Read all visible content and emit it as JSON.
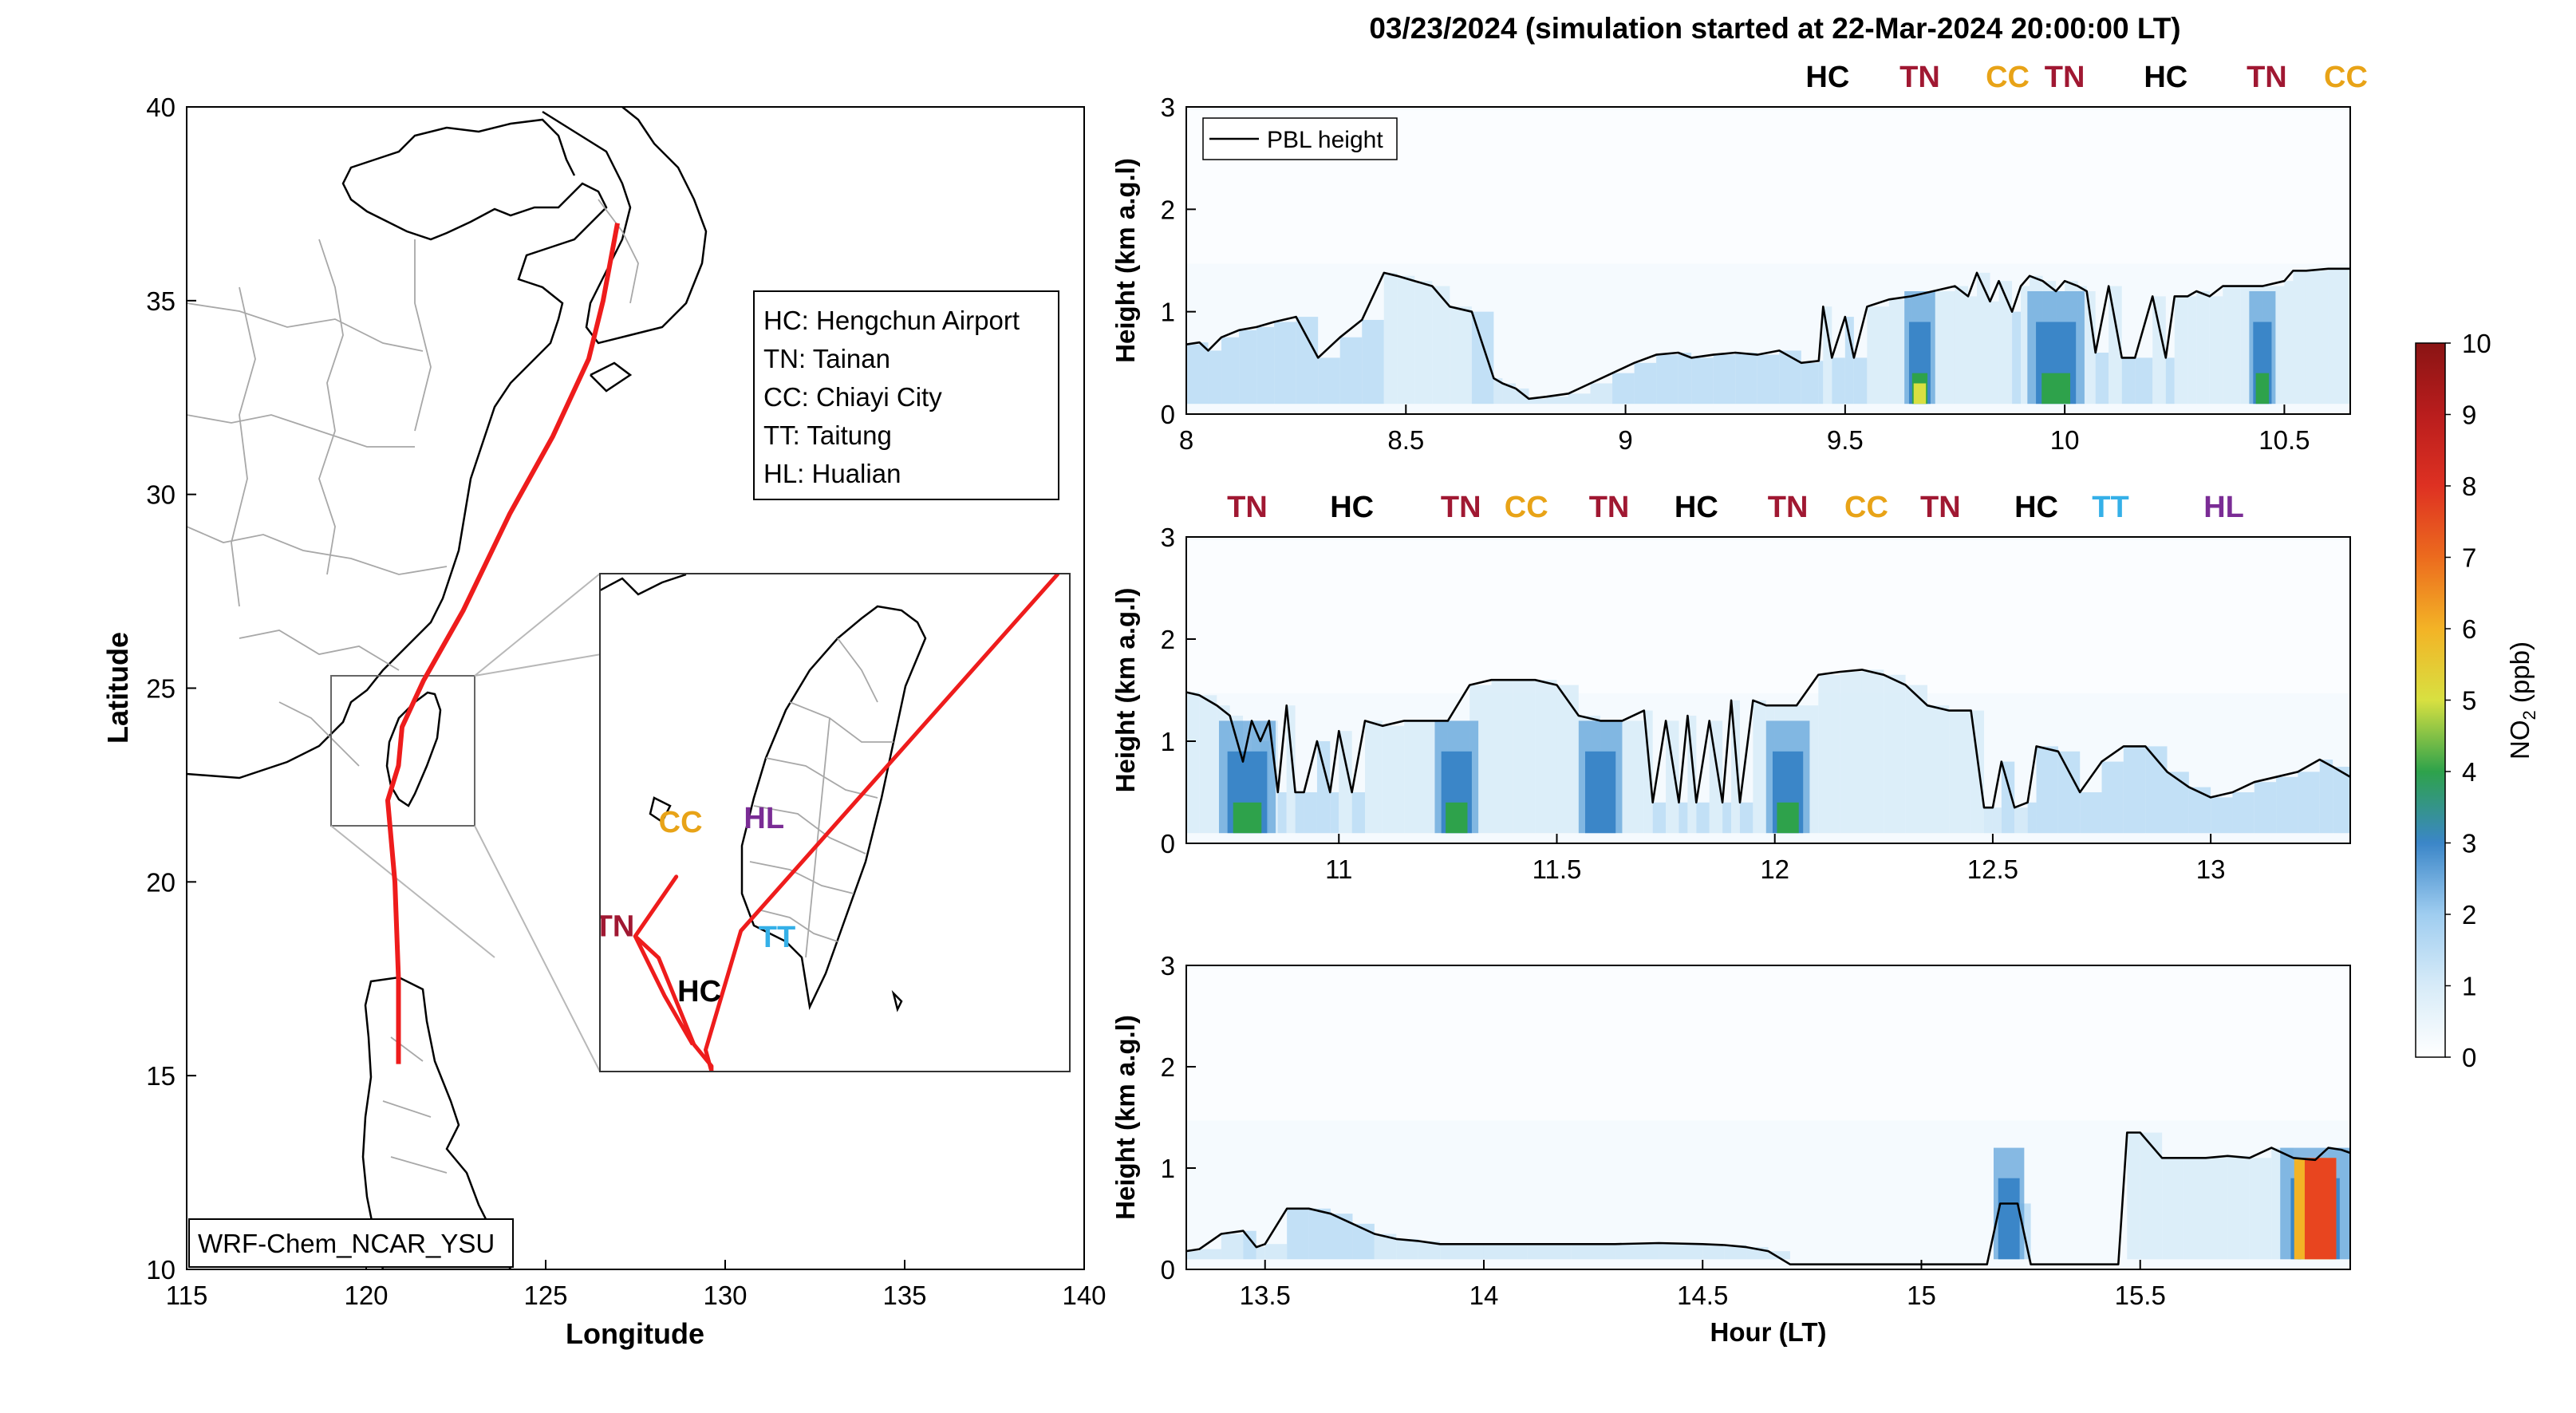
{
  "figure_title": "03/23/2024 (simulation started at 22-Mar-2024 20:00:00 LT)",
  "colors": {
    "route": "#ee1c1c",
    "HC": "#000000",
    "TN": "#a01832",
    "CC": "#e8a317",
    "TT": "#35b0e8",
    "HL": "#7a2c95",
    "land_fill": "#ffffff",
    "coast": "#000000",
    "border": "#a8a8a8",
    "pbl": "#000000"
  },
  "map": {
    "xlabel": "Longitude",
    "ylabel": "Latitude",
    "xlim": [
      115,
      140
    ],
    "ylim": [
      10,
      40
    ],
    "xticks": [
      "115",
      "120",
      "125",
      "130",
      "135",
      "140"
    ],
    "yticks": [
      "10",
      "15",
      "20",
      "25",
      "30",
      "35",
      "40"
    ],
    "legend_lines": [
      "HC: Hengchun Airport",
      "TN: Tainan",
      "CC: Chiayi City",
      "TT: Taitung",
      "HL: Hualian"
    ],
    "model_label": "WRF-Chem_NCAR_YSU",
    "route_lonlat": [
      [
        127.0,
        37.0
      ],
      [
        126.9,
        36.5
      ],
      [
        126.6,
        35.0
      ],
      [
        126.2,
        33.5
      ],
      [
        125.2,
        31.5
      ],
      [
        124.0,
        29.5
      ],
      [
        122.7,
        27.0
      ],
      [
        121.6,
        25.2
      ],
      [
        121.0,
        24.0
      ],
      [
        120.9,
        23.0
      ],
      [
        120.6,
        22.1
      ],
      [
        120.8,
        20.0
      ],
      [
        120.9,
        17.5
      ],
      [
        120.9,
        15.3
      ]
    ],
    "inset_box": {
      "lon": [
        119.2,
        123.2
      ],
      "lat": [
        21.4,
        26.0
      ]
    },
    "inset": {
      "lon_range": [
        119.0,
        127.0
      ],
      "lat_range": [
        21.3,
        25.9
      ],
      "labels": [
        {
          "code": "CC",
          "text": "CC",
          "lon": 120.0,
          "lat": 23.51
        },
        {
          "code": "HL",
          "text": "HL",
          "lon": 121.45,
          "lat": 23.55
        },
        {
          "code": "TN",
          "text": "TN",
          "lon": 118.9,
          "lat": 22.55
        },
        {
          "code": "TT",
          "text": "TT",
          "lon": 121.7,
          "lat": 22.45
        },
        {
          "code": "HC",
          "text": "HC",
          "lon": 120.32,
          "lat": 21.95
        }
      ]
    }
  },
  "colorbar": {
    "label": "NO2 (ppb)",
    "label_main": "NO",
    "label_sub": "2",
    "label_unit": " (ppb)",
    "ticks": [
      "0",
      "1",
      "2",
      "3",
      "4",
      "5",
      "6",
      "7",
      "8",
      "9",
      "10"
    ],
    "range": [
      0,
      10
    ]
  },
  "panel_axis_labels": {
    "ylabel": "Height (km a.g.l)",
    "xlabel": "Hour (LT)"
  },
  "legend": {
    "pbl": "PBL height"
  },
  "chart_data": [
    {
      "type": "heatmap",
      "title": "03/23/2024 (simulation started at 22-Mar-2024 20:00:00 LT)",
      "xlim": [
        8.0,
        10.65
      ],
      "ylim": [
        0,
        3
      ],
      "xticks": [
        "8",
        "8.5",
        "9",
        "9.5",
        "10",
        "10.5"
      ],
      "yticks": [
        "0",
        "1",
        "2",
        "3"
      ],
      "ylabel": "Height (km a.g.l)",
      "top_labels": [
        {
          "code": "HC",
          "text": "HC",
          "x": 9.46
        },
        {
          "code": "TN",
          "text": "TN",
          "x": 9.67
        },
        {
          "code": "CC",
          "text": "CC",
          "x": 9.87
        },
        {
          "code": "TN",
          "text": "TN",
          "x": 10.0
        },
        {
          "code": "HC",
          "text": "HC",
          "x": 10.23
        },
        {
          "code": "TN",
          "text": "TN",
          "x": 10.46
        },
        {
          "code": "CC",
          "text": "CC",
          "x": 10.64
        }
      ],
      "series": [
        {
          "name": "PBL height",
          "x": [
            8.0,
            8.03,
            8.05,
            8.08,
            8.12,
            8.16,
            8.2,
            8.25,
            8.3,
            8.35,
            8.4,
            8.45,
            8.48,
            8.52,
            8.56,
            8.6,
            8.65,
            8.7,
            8.72,
            8.75,
            8.78,
            8.82,
            8.87,
            8.92,
            8.97,
            9.02,
            9.07,
            9.12,
            9.15,
            9.2,
            9.25,
            9.3,
            9.35,
            9.4,
            9.44,
            9.45,
            9.47,
            9.5,
            9.52,
            9.55,
            9.6,
            9.65,
            9.7,
            9.75,
            9.78,
            9.8,
            9.83,
            9.85,
            9.88,
            9.9,
            9.92,
            9.95,
            9.98,
            10.0,
            10.03,
            10.05,
            10.07,
            10.1,
            10.13,
            10.16,
            10.2,
            10.23,
            10.25,
            10.28,
            10.3,
            10.33,
            10.36,
            10.4,
            10.45,
            10.5,
            10.52,
            10.55,
            10.6,
            10.65
          ],
          "y": [
            0.68,
            0.7,
            0.62,
            0.75,
            0.82,
            0.85,
            0.9,
            0.95,
            0.55,
            0.75,
            0.92,
            1.38,
            1.35,
            1.3,
            1.25,
            1.05,
            1.0,
            0.35,
            0.3,
            0.25,
            0.15,
            0.17,
            0.2,
            0.3,
            0.4,
            0.5,
            0.58,
            0.6,
            0.55,
            0.58,
            0.6,
            0.58,
            0.62,
            0.5,
            0.52,
            1.05,
            0.55,
            0.95,
            0.55,
            1.05,
            1.12,
            1.15,
            1.2,
            1.25,
            1.15,
            1.38,
            1.1,
            1.3,
            1.0,
            1.25,
            1.35,
            1.3,
            1.2,
            1.3,
            1.25,
            1.2,
            0.6,
            1.25,
            0.55,
            0.55,
            1.15,
            0.55,
            1.15,
            1.15,
            1.2,
            1.15,
            1.25,
            1.25,
            1.25,
            1.3,
            1.4,
            1.4,
            1.42,
            1.42
          ]
        }
      ],
      "no2_hotspots": [
        {
          "x_center": 9.67,
          "width": 0.07,
          "max_ppb": 5.0
        },
        {
          "x_center": 9.98,
          "width": 0.13,
          "max_ppb": 4.3
        },
        {
          "x_center": 10.45,
          "width": 0.06,
          "max_ppb": 3.5
        }
      ]
    },
    {
      "type": "heatmap",
      "xlim": [
        10.65,
        13.32
      ],
      "ylim": [
        0,
        3
      ],
      "xticks": [
        "11",
        "11.5",
        "12",
        "12.5",
        "13"
      ],
      "yticks": [
        "0",
        "1",
        "2",
        "3"
      ],
      "ylabel": "Height (km a.g.l)",
      "top_labels": [
        {
          "code": "TN",
          "text": "TN",
          "x": 10.79
        },
        {
          "code": "HC",
          "text": "HC",
          "x": 11.03
        },
        {
          "code": "TN",
          "text": "TN",
          "x": 11.28
        },
        {
          "code": "CC",
          "text": "CC",
          "x": 11.43
        },
        {
          "code": "TN",
          "text": "TN",
          "x": 11.62
        },
        {
          "code": "HC",
          "text": "HC",
          "x": 11.82
        },
        {
          "code": "TN",
          "text": "TN",
          "x": 12.03
        },
        {
          "code": "CC",
          "text": "CC",
          "x": 12.21
        },
        {
          "code": "TN",
          "text": "TN",
          "x": 12.38
        },
        {
          "code": "HC",
          "text": "HC",
          "x": 12.6
        },
        {
          "code": "TT",
          "text": "TT",
          "x": 12.77
        },
        {
          "code": "HL",
          "text": "HL",
          "x": 13.03
        }
      ],
      "series": [
        {
          "name": "PBL height",
          "x": [
            10.65,
            10.68,
            10.72,
            10.75,
            10.78,
            10.8,
            10.82,
            10.84,
            10.86,
            10.88,
            10.9,
            10.92,
            10.95,
            10.98,
            11.0,
            11.03,
            11.06,
            11.1,
            11.15,
            11.2,
            11.25,
            11.3,
            11.35,
            11.4,
            11.45,
            11.5,
            11.55,
            11.6,
            11.65,
            11.7,
            11.72,
            11.75,
            11.78,
            11.8,
            11.82,
            11.85,
            11.88,
            11.9,
            11.92,
            11.95,
            11.98,
            12.0,
            12.05,
            12.1,
            12.15,
            12.2,
            12.25,
            12.3,
            12.35,
            12.4,
            12.45,
            12.48,
            12.5,
            12.52,
            12.55,
            12.58,
            12.6,
            12.65,
            12.7,
            12.75,
            12.8,
            12.85,
            12.9,
            12.95,
            13.0,
            13.05,
            13.1,
            13.15,
            13.2,
            13.25,
            13.28,
            13.32
          ],
          "y": [
            1.48,
            1.45,
            1.35,
            1.25,
            0.8,
            1.2,
            1.0,
            1.2,
            0.5,
            1.35,
            0.5,
            0.5,
            1.0,
            0.5,
            1.1,
            0.5,
            1.2,
            1.15,
            1.2,
            1.2,
            1.2,
            1.55,
            1.6,
            1.6,
            1.6,
            1.55,
            1.25,
            1.2,
            1.2,
            1.3,
            0.4,
            1.2,
            0.4,
            1.25,
            0.4,
            1.2,
            0.4,
            1.4,
            0.4,
            1.4,
            1.35,
            1.35,
            1.35,
            1.65,
            1.68,
            1.7,
            1.65,
            1.55,
            1.35,
            1.3,
            1.3,
            0.35,
            0.35,
            0.8,
            0.35,
            0.4,
            0.95,
            0.9,
            0.5,
            0.8,
            0.95,
            0.95,
            0.7,
            0.55,
            0.45,
            0.5,
            0.6,
            0.65,
            0.7,
            0.82,
            0.75,
            0.65
          ]
        }
      ],
      "no2_hotspots": [
        {
          "x_center": 10.79,
          "width": 0.13,
          "max_ppb": 3.6
        },
        {
          "x_center": 11.27,
          "width": 0.1,
          "max_ppb": 3.3
        },
        {
          "x_center": 11.6,
          "width": 0.1,
          "max_ppb": 3.2
        },
        {
          "x_center": 12.03,
          "width": 0.1,
          "max_ppb": 3.4
        }
      ]
    },
    {
      "type": "heatmap",
      "xlim": [
        13.32,
        15.98
      ],
      "ylim": [
        0,
        3
      ],
      "xticks": [
        "13.5",
        "14",
        "14.5",
        "15",
        "15.5"
      ],
      "yticks": [
        "0",
        "1",
        "2",
        "3"
      ],
      "xlabel": "Hour (LT)",
      "ylabel": "Height (km a.g.l)",
      "top_labels": [],
      "series": [
        {
          "name": "PBL height",
          "x": [
            13.32,
            13.35,
            13.4,
            13.45,
            13.48,
            13.5,
            13.55,
            13.6,
            13.65,
            13.7,
            13.75,
            13.8,
            13.85,
            13.9,
            14.0,
            14.1,
            14.2,
            14.3,
            14.4,
            14.5,
            14.55,
            14.6,
            14.65,
            14.7,
            14.8,
            14.9,
            15.0,
            15.1,
            15.15,
            15.18,
            15.22,
            15.25,
            15.3,
            15.4,
            15.45,
            15.47,
            15.5,
            15.55,
            15.6,
            15.65,
            15.7,
            15.75,
            15.8,
            15.85,
            15.9,
            15.93,
            15.96,
            15.98
          ],
          "y": [
            0.18,
            0.2,
            0.35,
            0.38,
            0.22,
            0.25,
            0.6,
            0.6,
            0.55,
            0.45,
            0.35,
            0.3,
            0.28,
            0.25,
            0.25,
            0.25,
            0.25,
            0.25,
            0.26,
            0.25,
            0.24,
            0.22,
            0.18,
            0.05,
            0.05,
            0.05,
            0.05,
            0.05,
            0.05,
            0.65,
            0.65,
            0.05,
            0.05,
            0.05,
            0.05,
            1.35,
            1.35,
            1.1,
            1.1,
            1.1,
            1.12,
            1.1,
            1.2,
            1.1,
            1.08,
            1.2,
            1.18,
            1.15
          ]
        }
      ],
      "no2_hotspots": [
        {
          "x_center": 15.2,
          "width": 0.07,
          "max_ppb": 2.7
        },
        {
          "x_center": 15.9,
          "width": 0.16,
          "max_ppb": 7.5
        }
      ]
    }
  ]
}
